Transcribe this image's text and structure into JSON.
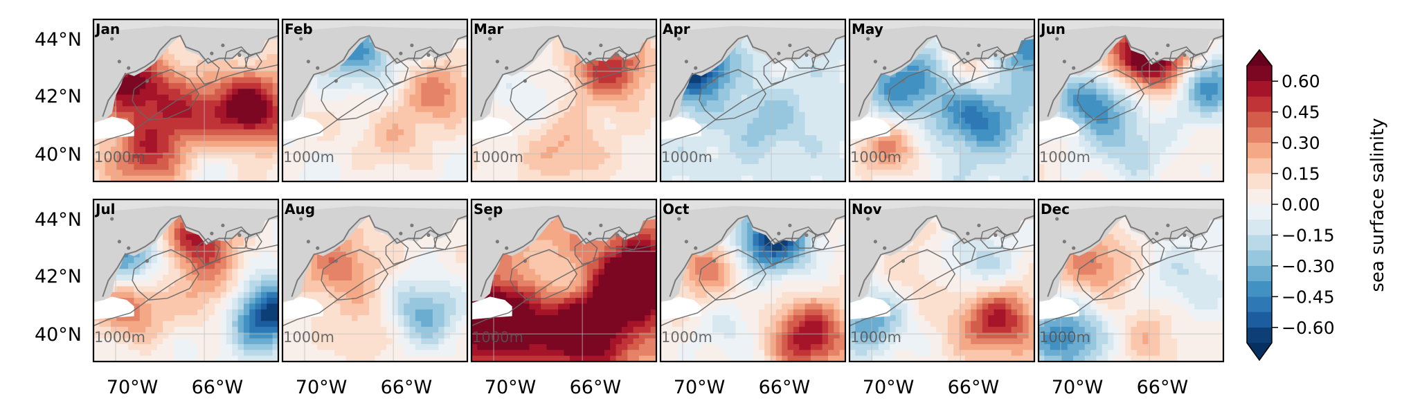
{
  "figure": {
    "months": [
      "Jan",
      "Feb",
      "Mar",
      "Apr",
      "May",
      "Jun",
      "Jul",
      "Aug",
      "Sep",
      "Oct",
      "Nov",
      "Dec"
    ],
    "y_ticks": [
      "44°N",
      "42°N",
      "40°N"
    ],
    "x_ticks": [
      "70°W",
      "66°W"
    ],
    "isobath_label": "1000m",
    "colorbar": {
      "label": "sea surface salinity",
      "ticks": [
        "0.60",
        "0.45",
        "0.30",
        "0.15",
        "0.00",
        "−0.15",
        "−0.30",
        "−0.45",
        "−0.60"
      ],
      "tick_values": [
        0.6,
        0.45,
        0.3,
        0.15,
        0.0,
        -0.15,
        -0.3,
        -0.45,
        -0.6
      ],
      "range": [
        -0.675,
        0.675
      ],
      "colormap": "RdBu_r",
      "extend": "both"
    },
    "colors": {
      "land": "#d3d3d3",
      "coast": "#7a7a7a",
      "grid": "#bdbdbd"
    },
    "panel_fields": {
      "Jan": {
        "base": 0.08,
        "blobs": [
          [
            0.2,
            0.4,
            0.55
          ],
          [
            0.85,
            0.55,
            0.62
          ],
          [
            0.5,
            0.6,
            0.35
          ],
          [
            0.3,
            0.85,
            0.4
          ],
          [
            0.6,
            0.9,
            -0.15
          ]
        ]
      },
      "Feb": {
        "base": -0.02,
        "blobs": [
          [
            0.4,
            0.2,
            -0.35
          ],
          [
            0.85,
            0.45,
            0.35
          ],
          [
            0.6,
            0.75,
            0.2
          ],
          [
            0.2,
            0.6,
            0.1
          ]
        ]
      },
      "Mar": {
        "base": 0.05,
        "blobs": [
          [
            0.75,
            0.3,
            0.45
          ],
          [
            0.5,
            0.8,
            0.2
          ],
          [
            0.3,
            0.45,
            -0.12
          ]
        ]
      },
      "Apr": {
        "base": -0.1,
        "blobs": [
          [
            0.2,
            0.3,
            -0.65
          ],
          [
            0.55,
            0.6,
            -0.2
          ],
          [
            0.4,
            0.4,
            0.15
          ]
        ]
      },
      "May": {
        "base": -0.1,
        "blobs": [
          [
            0.75,
            0.25,
            0.45
          ],
          [
            0.9,
            0.2,
            -0.55
          ],
          [
            0.3,
            0.4,
            -0.35
          ],
          [
            0.2,
            0.8,
            0.4
          ],
          [
            0.7,
            0.6,
            -0.4
          ]
        ]
      },
      "Jun": {
        "base": 0.05,
        "blobs": [
          [
            0.65,
            0.25,
            0.7
          ],
          [
            0.3,
            0.5,
            -0.5
          ],
          [
            0.9,
            0.4,
            -0.5
          ],
          [
            0.5,
            0.8,
            -0.25
          ],
          [
            0.4,
            0.2,
            0.2
          ]
        ]
      },
      "Jul": {
        "base": 0.0,
        "blobs": [
          [
            0.55,
            0.25,
            0.55
          ],
          [
            0.2,
            0.35,
            -0.45
          ],
          [
            0.92,
            0.7,
            -0.7
          ],
          [
            0.2,
            0.65,
            0.4
          ],
          [
            0.7,
            0.6,
            0.3
          ]
        ]
      },
      "Aug": {
        "base": 0.05,
        "blobs": [
          [
            0.3,
            0.4,
            0.3
          ],
          [
            0.75,
            0.7,
            -0.4
          ],
          [
            0.5,
            0.75,
            0.15
          ]
        ]
      },
      "Sep": {
        "base": 0.3,
        "blobs": [
          [
            0.15,
            0.75,
            0.7
          ],
          [
            0.9,
            0.5,
            0.7
          ],
          [
            0.45,
            0.5,
            -0.2
          ],
          [
            0.6,
            0.8,
            0.6
          ]
        ]
      },
      "Oct": {
        "base": 0.05,
        "blobs": [
          [
            0.6,
            0.25,
            -0.7
          ],
          [
            0.8,
            0.85,
            0.55
          ],
          [
            0.25,
            0.4,
            0.3
          ],
          [
            0.4,
            0.8,
            -0.15
          ]
        ]
      },
      "Nov": {
        "base": 0.05,
        "blobs": [
          [
            0.8,
            0.75,
            0.5
          ],
          [
            0.1,
            0.75,
            -0.4
          ],
          [
            0.7,
            0.4,
            -0.25
          ],
          [
            0.4,
            0.5,
            0.1
          ]
        ]
      },
      "Dec": {
        "base": 0.0,
        "blobs": [
          [
            0.3,
            0.4,
            0.35
          ],
          [
            0.15,
            0.85,
            -0.45
          ],
          [
            0.8,
            0.5,
            -0.15
          ],
          [
            0.6,
            0.85,
            0.2
          ]
        ]
      }
    }
  }
}
